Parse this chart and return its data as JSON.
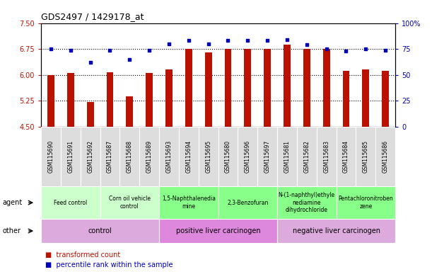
{
  "title": "GDS2497 / 1429178_at",
  "samples": [
    "GSM115690",
    "GSM115691",
    "GSM115692",
    "GSM115687",
    "GSM115688",
    "GSM115689",
    "GSM115693",
    "GSM115694",
    "GSM115695",
    "GSM115680",
    "GSM115696",
    "GSM115697",
    "GSM115681",
    "GSM115682",
    "GSM115683",
    "GSM115684",
    "GSM115685",
    "GSM115686"
  ],
  "bar_values": [
    6.0,
    6.05,
    5.22,
    6.07,
    5.38,
    6.05,
    6.15,
    6.75,
    6.65,
    6.75,
    6.75,
    6.75,
    6.88,
    6.75,
    6.75,
    6.12,
    6.15,
    6.12
  ],
  "percentile_values": [
    75,
    74,
    62,
    74,
    65,
    74,
    80,
    83,
    80,
    83,
    83,
    83,
    84,
    79,
    75,
    73,
    75,
    74
  ],
  "ylim_left": [
    4.5,
    7.5
  ],
  "ylim_right": [
    0,
    100
  ],
  "yticks_left": [
    4.5,
    5.25,
    6.0,
    6.75,
    7.5
  ],
  "yticks_right": [
    0,
    25,
    50,
    75,
    100
  ],
  "hlines": [
    5.25,
    6.0,
    6.75
  ],
  "bar_color": "#bb1100",
  "dot_color": "#0000bb",
  "bg_color": "#ffffff",
  "agent_groups": [
    {
      "label": "Feed control",
      "start": 0,
      "end": 3,
      "color": "#ccffcc"
    },
    {
      "label": "Corn oil vehicle\ncontrol",
      "start": 3,
      "end": 6,
      "color": "#ccffcc"
    },
    {
      "label": "1,5-Naphthalenedia\nmine",
      "start": 6,
      "end": 9,
      "color": "#88ff88"
    },
    {
      "label": "2,3-Benzofuran",
      "start": 9,
      "end": 12,
      "color": "#88ff88"
    },
    {
      "label": "N-(1-naphthyl)ethyle\nnediamine\ndihydrochloride",
      "start": 12,
      "end": 15,
      "color": "#88ff88"
    },
    {
      "label": "Pentachloronitroben\nzene",
      "start": 15,
      "end": 18,
      "color": "#88ff88"
    }
  ],
  "other_groups": [
    {
      "label": "control",
      "start": 0,
      "end": 6,
      "color": "#ddaadd"
    },
    {
      "label": "positive liver carcinogen",
      "start": 6,
      "end": 12,
      "color": "#dd88dd"
    },
    {
      "label": "negative liver carcinogen",
      "start": 12,
      "end": 18,
      "color": "#ddaadd"
    }
  ],
  "sample_bg": "#dddddd",
  "legend_bar_label": "transformed count",
  "legend_pct_label": "percentile rank within the sample",
  "agent_label": "agent",
  "other_label": "other"
}
